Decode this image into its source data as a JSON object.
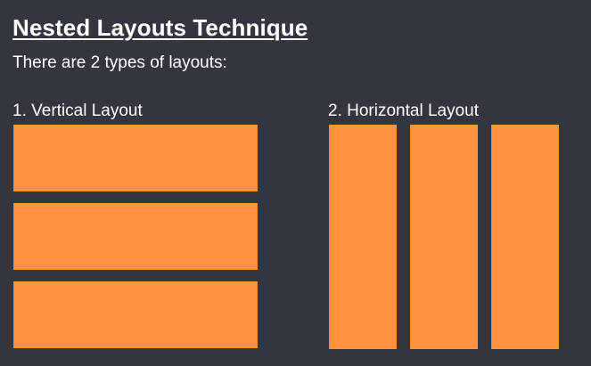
{
  "title": "Nested Layouts Technique",
  "subtitle": "There are 2 types of layouts:",
  "layouts": {
    "vertical": {
      "label": "1. Vertical Layout",
      "block_count": 3
    },
    "horizontal": {
      "label": "2. Horizontal Layout",
      "block_count": 3
    }
  },
  "colors": {
    "background": "#33353f",
    "block": "#ff9140",
    "text": "#ffffff"
  }
}
